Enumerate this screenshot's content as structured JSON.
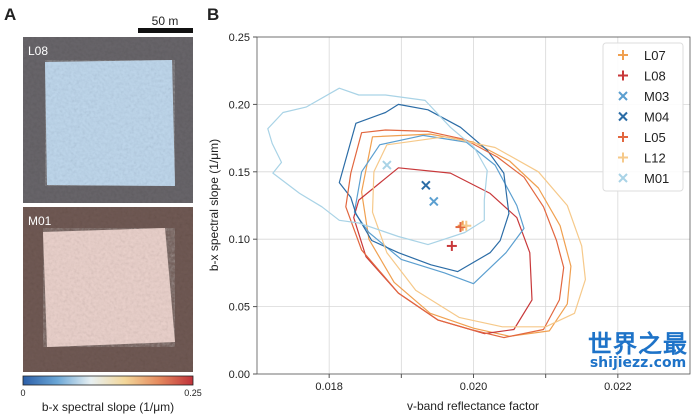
{
  "panel_a": {
    "label": "A",
    "scale_bar": "50 m",
    "images": [
      {
        "label": "L08",
        "tint": "#7fb0dc"
      },
      {
        "label": "M01",
        "tint": "#d9a49a"
      }
    ],
    "colorbar": {
      "min_label": "0",
      "max_label": "0.25",
      "title": "b-x spectral slope (1/μm)",
      "colors": [
        "#2c5fa8",
        "#6aa6d6",
        "#e8f0f2",
        "#f3d79a",
        "#e58a5e",
        "#c0323a"
      ]
    }
  },
  "chart_data": {
    "type": "scatter",
    "panel_label": "B",
    "xlabel": "v-band reflectance factor",
    "ylabel": "b-x spectral slope (1/μm)",
    "xlim": [
      0.017,
      0.023
    ],
    "ylim": [
      0.0,
      0.25
    ],
    "xticks": [
      0.018,
      0.02,
      0.022
    ],
    "xtick_labels": [
      "0.018",
      "0.020",
      "0.022"
    ],
    "xgrid": [
      0.018,
      0.019,
      0.02,
      0.021,
      0.022
    ],
    "yticks": [
      0.0,
      0.05,
      0.1,
      0.15,
      0.2,
      0.25
    ],
    "ytick_labels": [
      "0.00",
      "0.05",
      "0.10",
      "0.15",
      "0.20",
      "0.25"
    ],
    "grid": true,
    "legend_placement": "top-right",
    "series": [
      {
        "name": "L07",
        "marker": "+",
        "color": "#f0a050",
        "point": [
          0.01985,
          0.11
        ],
        "contour": [
          [
            0.0186,
            0.176
          ],
          [
            0.0194,
            0.178
          ],
          [
            0.02,
            0.172
          ],
          [
            0.0205,
            0.158
          ],
          [
            0.0209,
            0.138
          ],
          [
            0.0212,
            0.11
          ],
          [
            0.02135,
            0.08
          ],
          [
            0.0213,
            0.052
          ],
          [
            0.02105,
            0.032
          ],
          [
            0.0205,
            0.028
          ],
          [
            0.02,
            0.034
          ],
          [
            0.0194,
            0.045
          ],
          [
            0.0189,
            0.068
          ],
          [
            0.01855,
            0.1
          ],
          [
            0.01845,
            0.135
          ]
        ]
      },
      {
        "name": "L08",
        "marker": "+",
        "color": "#c8383a",
        "point": [
          0.0197,
          0.095
        ],
        "contour": [
          [
            0.01841,
            0.129
          ],
          [
            0.01896,
            0.153
          ],
          [
            0.01968,
            0.149
          ],
          [
            0.02023,
            0.134
          ],
          [
            0.0206,
            0.116
          ],
          [
            0.02078,
            0.09
          ],
          [
            0.02081,
            0.055
          ],
          [
            0.02056,
            0.033
          ],
          [
            0.02015,
            0.03
          ],
          [
            0.01951,
            0.04
          ],
          [
            0.01896,
            0.06
          ],
          [
            0.01851,
            0.087
          ],
          [
            0.01834,
            0.116
          ]
        ]
      },
      {
        "name": "M03",
        "marker": "x",
        "color": "#5b9fd0",
        "point": [
          0.01945,
          0.128
        ],
        "contour": [
          [
            0.01845,
            0.15
          ],
          [
            0.0187,
            0.17
          ],
          [
            0.0193,
            0.177
          ],
          [
            0.0199,
            0.172
          ],
          [
            0.0203,
            0.155
          ],
          [
            0.0206,
            0.125
          ],
          [
            0.0207,
            0.108
          ],
          [
            0.02045,
            0.09
          ],
          [
            0.02,
            0.067
          ],
          [
            0.0196,
            0.075
          ],
          [
            0.019,
            0.085
          ],
          [
            0.01855,
            0.105
          ],
          [
            0.01835,
            0.12
          ]
        ]
      },
      {
        "name": "M04",
        "marker": "x",
        "color": "#2b6ca6",
        "point": [
          0.01934,
          0.14
        ],
        "contour": [
          [
            0.01814,
            0.142
          ],
          [
            0.01837,
            0.186
          ],
          [
            0.01878,
            0.194
          ],
          [
            0.01896,
            0.2
          ],
          [
            0.01937,
            0.196
          ],
          [
            0.01982,
            0.183
          ],
          [
            0.02019,
            0.166
          ],
          [
            0.02042,
            0.149
          ],
          [
            0.02049,
            0.119
          ],
          [
            0.02037,
            0.099
          ],
          [
            0.02023,
            0.09
          ],
          [
            0.01978,
            0.076
          ],
          [
            0.01941,
            0.081
          ],
          [
            0.01896,
            0.09
          ],
          [
            0.01859,
            0.099
          ],
          [
            0.01837,
            0.119
          ],
          [
            0.0183,
            0.131
          ]
        ]
      },
      {
        "name": "L05",
        "marker": "+",
        "color": "#e2673f",
        "point": [
          0.01982,
          0.109
        ],
        "contour": [
          [
            0.01845,
            0.179
          ],
          [
            0.01878,
            0.181
          ],
          [
            0.01937,
            0.18
          ],
          [
            0.01988,
            0.174
          ],
          [
            0.02033,
            0.161
          ],
          [
            0.0207,
            0.146
          ],
          [
            0.02097,
            0.124
          ],
          [
            0.02115,
            0.099
          ],
          [
            0.02125,
            0.079
          ],
          [
            0.02119,
            0.055
          ],
          [
            0.02097,
            0.033
          ],
          [
            0.02042,
            0.027
          ],
          [
            0.01996,
            0.033
          ],
          [
            0.01951,
            0.04
          ],
          [
            0.01896,
            0.06
          ],
          [
            0.01845,
            0.092
          ],
          [
            0.01823,
            0.124
          ],
          [
            0.0183,
            0.149
          ]
        ]
      },
      {
        "name": "L12",
        "marker": "+",
        "color": "#f6c98a",
        "point": [
          0.0199,
          0.11
        ],
        "contour": [
          [
            0.0188,
            0.17
          ],
          [
            0.0196,
            0.176
          ],
          [
            0.0203,
            0.168
          ],
          [
            0.0209,
            0.15
          ],
          [
            0.0213,
            0.125
          ],
          [
            0.0215,
            0.095
          ],
          [
            0.02155,
            0.07
          ],
          [
            0.0214,
            0.045
          ],
          [
            0.021,
            0.035
          ],
          [
            0.0204,
            0.035
          ],
          [
            0.0198,
            0.042
          ],
          [
            0.0192,
            0.062
          ],
          [
            0.0188,
            0.09
          ],
          [
            0.0186,
            0.12
          ],
          [
            0.01862,
            0.15
          ]
        ]
      },
      {
        "name": "M01",
        "marker": "x",
        "color": "#a9d3e6",
        "point": [
          0.0188,
          0.155
        ],
        "contour": [
          [
            0.01715,
            0.182
          ],
          [
            0.01736,
            0.194
          ],
          [
            0.01768,
            0.198
          ],
          [
            0.01814,
            0.212
          ],
          [
            0.01841,
            0.207
          ],
          [
            0.01878,
            0.207
          ],
          [
            0.01933,
            0.203
          ],
          [
            0.01968,
            0.183
          ],
          [
            0.02001,
            0.168
          ],
          [
            0.02019,
            0.151
          ],
          [
            0.02015,
            0.129
          ],
          [
            0.02015,
            0.114
          ],
          [
            0.01988,
            0.105
          ],
          [
            0.01937,
            0.096
          ],
          [
            0.01896,
            0.102
          ],
          [
            0.01841,
            0.112
          ],
          [
            0.01814,
            0.114
          ],
          [
            0.0179,
            0.124
          ],
          [
            0.01759,
            0.134
          ],
          [
            0.01722,
            0.149
          ],
          [
            0.01734,
            0.157
          ],
          [
            0.01721,
            0.171
          ]
        ]
      }
    ]
  },
  "watermark": {
    "cn": "世界之最",
    "en": "shijiezz.com"
  }
}
